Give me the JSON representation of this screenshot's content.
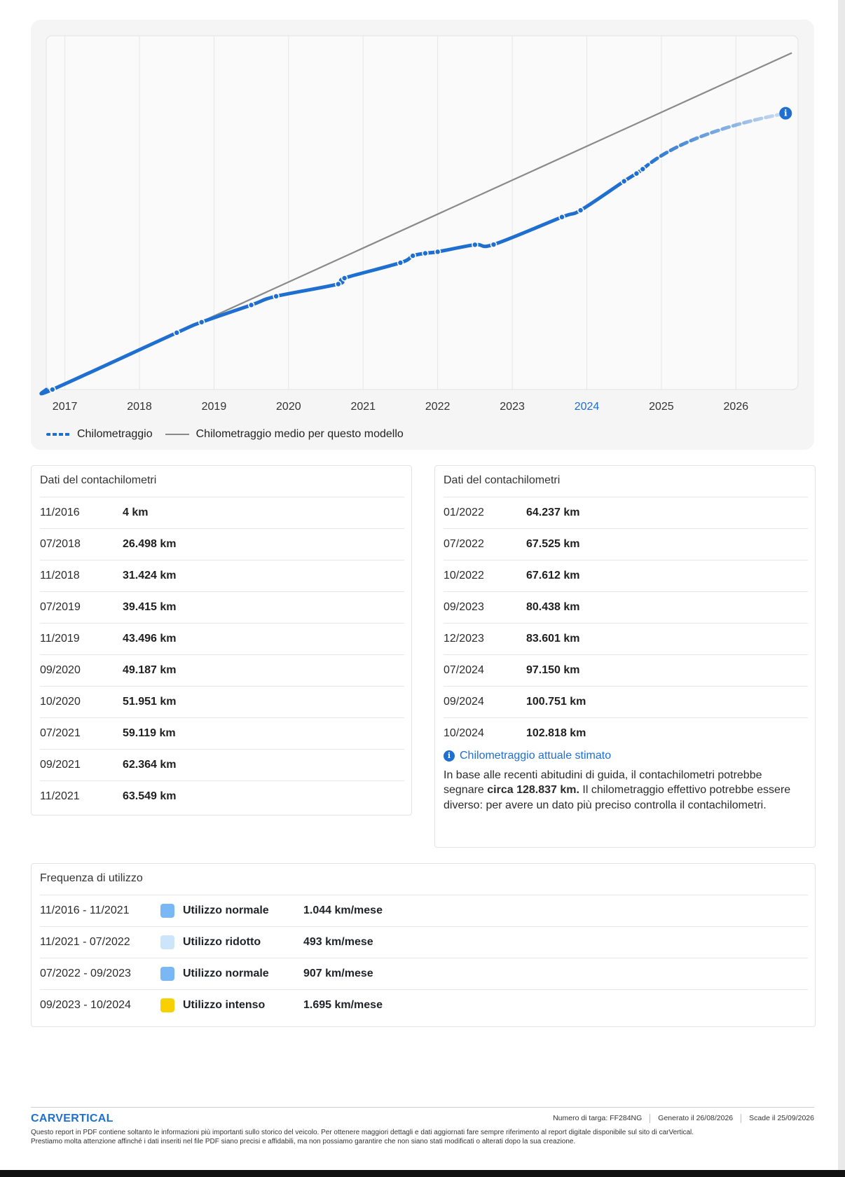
{
  "chart_data": {
    "type": "line",
    "x_ticks": [
      "2017",
      "2018",
      "2019",
      "2020",
      "2021",
      "2022",
      "2023",
      "2024",
      "2025",
      "2026"
    ],
    "highlighted_tick": "2024",
    "series": [
      {
        "name": "Chilometraggio",
        "style": "dotted-markers",
        "color": "#1e6fd0",
        "points": [
          {
            "date": "11/2016",
            "km": 4
          },
          {
            "date": "07/2018",
            "km": 26498
          },
          {
            "date": "11/2018",
            "km": 31424
          },
          {
            "date": "07/2019",
            "km": 39415
          },
          {
            "date": "11/2019",
            "km": 43496
          },
          {
            "date": "09/2020",
            "km": 49187
          },
          {
            "date": "10/2020",
            "km": 51951
          },
          {
            "date": "07/2021",
            "km": 59119
          },
          {
            "date": "09/2021",
            "km": 62364
          },
          {
            "date": "11/2021",
            "km": 63549
          },
          {
            "date": "01/2022",
            "km": 64237
          },
          {
            "date": "07/2022",
            "km": 67525
          },
          {
            "date": "10/2022",
            "km": 67612
          },
          {
            "date": "09/2023",
            "km": 80438
          },
          {
            "date": "12/2023",
            "km": 83601
          },
          {
            "date": "07/2024",
            "km": 97150
          },
          {
            "date": "09/2024",
            "km": 100751
          },
          {
            "date": "10/2024",
            "km": 102818
          }
        ],
        "projection_end": {
          "date": "09/2026",
          "km": 128837
        }
      },
      {
        "name": "Chilometraggio medio per questo modello",
        "color": "#8a8a8a",
        "points": [
          {
            "date": "11/2016",
            "km": 4
          },
          {
            "date": "10/2026",
            "km": 157000
          }
        ]
      }
    ],
    "grid": true,
    "legend_position": "bottom-left"
  },
  "odometer_left": {
    "title": "Dati del contachilometri",
    "rows": [
      {
        "date": "11/2016",
        "km": "4 km"
      },
      {
        "date": "07/2018",
        "km": "26.498 km"
      },
      {
        "date": "11/2018",
        "km": "31.424 km"
      },
      {
        "date": "07/2019",
        "km": "39.415 km"
      },
      {
        "date": "11/2019",
        "km": "43.496 km"
      },
      {
        "date": "09/2020",
        "km": "49.187 km"
      },
      {
        "date": "10/2020",
        "km": "51.951 km"
      },
      {
        "date": "07/2021",
        "km": "59.119 km"
      },
      {
        "date": "09/2021",
        "km": "62.364 km"
      },
      {
        "date": "11/2021",
        "km": "63.549 km"
      }
    ]
  },
  "odometer_right": {
    "title": "Dati del contachilometri",
    "rows": [
      {
        "date": "01/2022",
        "km": "64.237 km"
      },
      {
        "date": "07/2022",
        "km": "67.525 km"
      },
      {
        "date": "10/2022",
        "km": "67.612 km"
      },
      {
        "date": "09/2023",
        "km": "80.438 km"
      },
      {
        "date": "12/2023",
        "km": "83.601 km"
      },
      {
        "date": "07/2024",
        "km": "97.150 km"
      },
      {
        "date": "09/2024",
        "km": "100.751 km"
      },
      {
        "date": "10/2024",
        "km": "102.818 km"
      }
    ],
    "estimate": {
      "heading": "Chilometraggio attuale stimato",
      "text_1": "In base alle recenti abitudini di guida, il contachilometri potrebbe segnare",
      "bold": "circa 128.837 km.",
      "text_2": "Il chilometraggio effettivo potrebbe essere diverso: per avere un dato più preciso controlla il contachilometri."
    }
  },
  "frequency": {
    "title": "Frequenza di utilizzo",
    "rows": [
      {
        "period": "11/2016 - 11/2021",
        "color": "#7ab8f5",
        "type": "Utilizzo normale",
        "rate": "1.044 km/mese"
      },
      {
        "period": "11/2021 - 07/2022",
        "color": "#cce5fb",
        "type": "Utilizzo ridotto",
        "rate": "493 km/mese"
      },
      {
        "period": "07/2022 - 09/2023",
        "color": "#7ab8f5",
        "type": "Utilizzo normale",
        "rate": "907 km/mese"
      },
      {
        "period": "09/2023 - 10/2024",
        "color": "#f8d000",
        "type": "Utilizzo intenso",
        "rate": "1.695 km/mese"
      }
    ]
  },
  "footer": {
    "brand": "CARVERTICAL",
    "plate_label": "Numero di targa:",
    "plate": "FF284NG",
    "generated_label": "Generato il",
    "generated": "26/08/2026",
    "expires_label": "Scade il",
    "expires": "25/09/2026",
    "disclaimer_1": "Questo report in PDF contiene soltanto le informazioni più importanti sullo storico del veicolo. Per ottenere maggiori dettagli e dati aggiornati fare sempre riferimento al report digitale disponibile sul sito di carVertical.",
    "disclaimer_2": "Prestiamo molta attenzione affinché i dati inseriti nel file PDF siano precisi e affidabili, ma non possiamo garantire che non siano stati modificati o alterati dopo la sua creazione."
  }
}
